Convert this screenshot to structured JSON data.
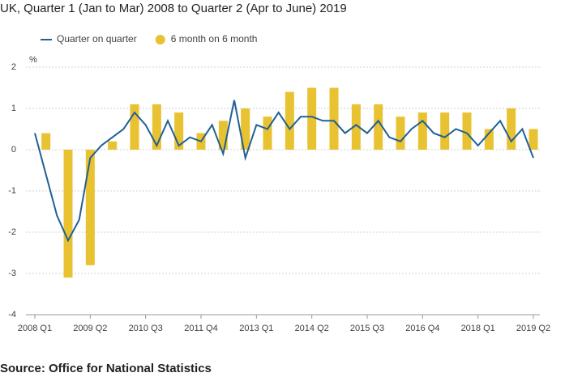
{
  "chart_data": {
    "type": "bar-line",
    "title": "UK, Quarter 1 (Jan to Mar) 2008 to Quarter 2 (Apr to June) 2019",
    "y_label": "%",
    "source": "Source: Office for National Statistics",
    "categories": [
      "2008 Q1",
      null,
      null,
      null,
      null,
      "2009 Q2",
      null,
      null,
      null,
      null,
      "2010 Q3",
      null,
      null,
      null,
      null,
      "2011 Q4",
      null,
      null,
      null,
      null,
      "2013 Q1",
      null,
      null,
      null,
      null,
      "2014 Q2",
      null,
      null,
      null,
      null,
      "2015 Q3",
      null,
      null,
      null,
      null,
      "2016 Q4",
      null,
      null,
      null,
      null,
      "2018 Q1",
      null,
      null,
      null,
      null,
      "2019 Q2"
    ],
    "series": [
      {
        "name": "Quarter on quarter",
        "type": "line",
        "color": "#206095",
        "values": [
          0.4,
          -0.6,
          -1.6,
          -2.2,
          -1.7,
          -0.2,
          0.1,
          0.3,
          0.5,
          0.9,
          0.6,
          0.1,
          0.7,
          0.1,
          0.3,
          0.2,
          0.6,
          -0.1,
          1.2,
          -0.2,
          0.6,
          0.5,
          0.9,
          0.5,
          0.8,
          0.8,
          0.7,
          0.7,
          0.4,
          0.6,
          0.4,
          0.7,
          0.3,
          0.2,
          0.5,
          0.7,
          0.4,
          0.3,
          0.5,
          0.4,
          0.1,
          0.4,
          0.7,
          0.2,
          0.5,
          -0.2
        ]
      },
      {
        "name": "6 month on 6 month",
        "type": "bar",
        "color": "#e9c232",
        "values": [
          null,
          0.4,
          null,
          -3.1,
          null,
          -2.8,
          null,
          0.2,
          null,
          1.1,
          null,
          1.1,
          null,
          0.9,
          null,
          0.4,
          null,
          0.7,
          null,
          1.0,
          null,
          0.8,
          null,
          1.4,
          null,
          1.5,
          null,
          1.5,
          null,
          1.1,
          null,
          1.1,
          null,
          0.8,
          null,
          0.9,
          null,
          0.9,
          null,
          0.9,
          null,
          0.5,
          null,
          1.0,
          null,
          0.5
        ]
      }
    ],
    "ylim": [
      -4,
      2
    ],
    "yticks": [
      -4,
      -3,
      -2,
      -1,
      0,
      1,
      2
    ],
    "grid": true
  }
}
